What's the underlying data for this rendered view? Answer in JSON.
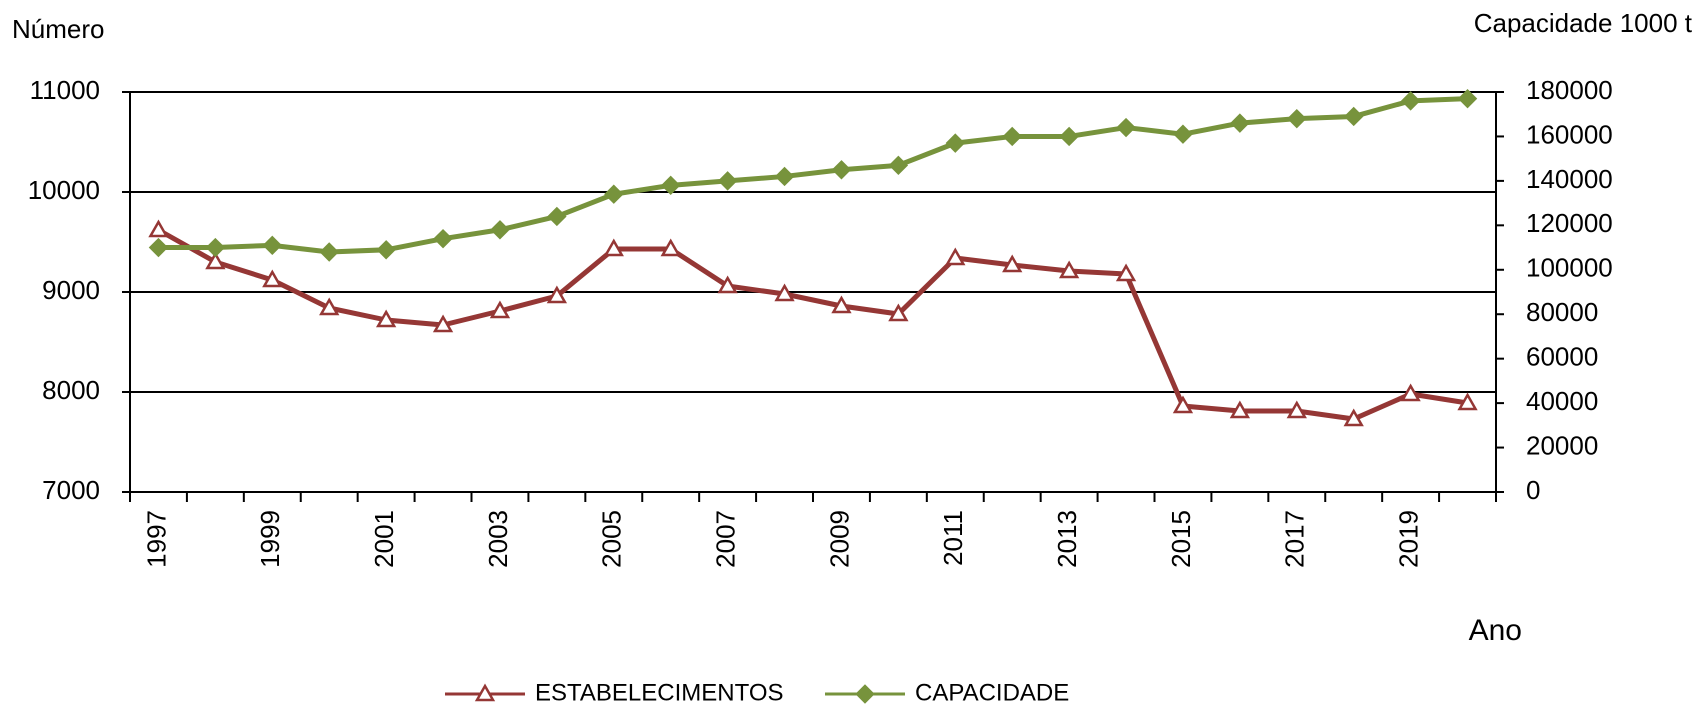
{
  "chart_data": {
    "type": "line",
    "y_label": "Número",
    "y2_label": "Capacidade 1000 t",
    "x_label": "Ano",
    "categories": [
      "1997",
      null,
      "1999",
      null,
      "2001",
      null,
      "2003",
      null,
      "2005",
      null,
      "2007",
      null,
      "2009",
      null,
      "2011",
      null,
      "2013",
      null,
      "2015",
      null,
      "2017",
      null,
      "2019",
      null
    ],
    "series": [
      {
        "name": "ESTABELECIMENTOS",
        "color": "#953735",
        "marker": "triangle",
        "values": [
          9620,
          9300,
          9120,
          8840,
          8720,
          8670,
          8810,
          8960,
          9430,
          9430,
          9060,
          8980,
          8860,
          8780,
          9340,
          9270,
          9210,
          9180,
          7860,
          7810,
          7810,
          7730,
          7980,
          7890
        ]
      },
      {
        "name": "CAPACIDADE",
        "color": "#77933c",
        "marker": "diamond",
        "axis": "y2",
        "values": [
          110000,
          110000,
          111000,
          108000,
          109000,
          114000,
          118000,
          124000,
          134000,
          138000,
          140000,
          142000,
          145000,
          147000,
          157000,
          160000,
          160000,
          164000,
          161000,
          166000,
          168000,
          169000,
          176000,
          177000
        ]
      }
    ],
    "ylim": [
      7000,
      11000
    ],
    "yticks": [
      7000,
      8000,
      9000,
      10000,
      11000
    ],
    "y2lim": [
      0,
      180000
    ],
    "y2ticks": [
      0,
      20000,
      40000,
      60000,
      80000,
      100000,
      120000,
      140000,
      160000,
      180000
    ],
    "grid": true,
    "legend": "bottom"
  }
}
